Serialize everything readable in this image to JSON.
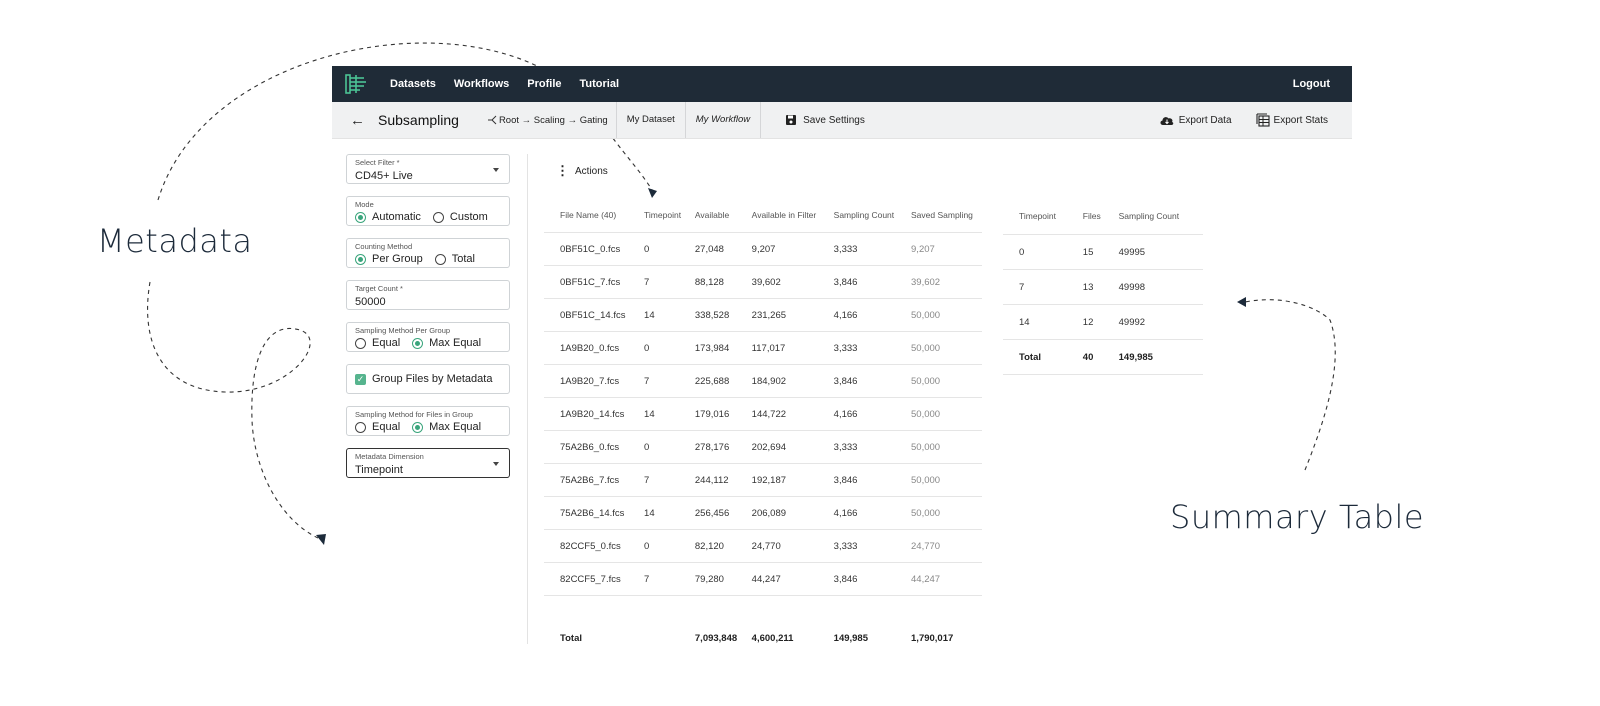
{
  "annotations": {
    "metadata": "Metadata",
    "summary_table": "Summary Table"
  },
  "nav": {
    "links": [
      "Datasets",
      "Workflows",
      "Profile",
      "Tutorial"
    ],
    "logout": "Logout"
  },
  "subbar": {
    "title": "Subsampling",
    "path": "Root → Scaling → Gating",
    "dataset": "My Dataset",
    "workflow": "My Workflow",
    "save": "Save Settings",
    "export_data": "Export Data",
    "export_stats": "Export Stats"
  },
  "form": {
    "filter": {
      "label": "Select Filter *",
      "value": "CD45+ Live"
    },
    "mode": {
      "label": "Mode",
      "options": [
        "Automatic",
        "Custom"
      ],
      "selected": "Automatic"
    },
    "counting": {
      "label": "Counting Method",
      "options": [
        "Per Group",
        "Total"
      ],
      "selected": "Per Group"
    },
    "target": {
      "label": "Target Count *",
      "value": "50000"
    },
    "sampling_group": {
      "label": "Sampling Method Per Group",
      "options": [
        "Equal",
        "Max Equal"
      ],
      "selected": "Max Equal"
    },
    "group_files": {
      "label": "Group Files by Metadata",
      "checked": true
    },
    "sampling_files": {
      "label": "Sampling Method for Files in Group",
      "options": [
        "Equal",
        "Max Equal"
      ],
      "selected": "Max Equal"
    },
    "dimension": {
      "label": "Metadata Dimension",
      "value": "Timepoint"
    }
  },
  "actions_label": "Actions",
  "main_table": {
    "headers": [
      "File Name (40)",
      "Timepoint",
      "Available",
      "Available in Filter",
      "Sampling Count",
      "Saved Sampling"
    ],
    "rows": [
      [
        "0BF51C_0.fcs",
        "0",
        "27,048",
        "9,207",
        "3,333",
        "9,207"
      ],
      [
        "0BF51C_7.fcs",
        "7",
        "88,128",
        "39,602",
        "3,846",
        "39,602"
      ],
      [
        "0BF51C_14.fcs",
        "14",
        "338,528",
        "231,265",
        "4,166",
        "50,000"
      ],
      [
        "1A9B20_0.fcs",
        "0",
        "173,984",
        "117,017",
        "3,333",
        "50,000"
      ],
      [
        "1A9B20_7.fcs",
        "7",
        "225,688",
        "184,902",
        "3,846",
        "50,000"
      ],
      [
        "1A9B20_14.fcs",
        "14",
        "179,016",
        "144,722",
        "4,166",
        "50,000"
      ],
      [
        "75A2B6_0.fcs",
        "0",
        "278,176",
        "202,694",
        "3,333",
        "50,000"
      ],
      [
        "75A2B6_7.fcs",
        "7",
        "244,112",
        "192,187",
        "3,846",
        "50,000"
      ],
      [
        "75A2B6_14.fcs",
        "14",
        "256,456",
        "206,089",
        "4,166",
        "50,000"
      ],
      [
        "82CCF5_0.fcs",
        "0",
        "82,120",
        "24,770",
        "3,333",
        "24,770"
      ],
      [
        "82CCF5_7.fcs",
        "7",
        "79,280",
        "44,247",
        "3,846",
        "44,247"
      ]
    ],
    "total": [
      "Total",
      "",
      "7,093,848",
      "4,600,211",
      "149,985",
      "1,790,017"
    ]
  },
  "summary_table": {
    "headers": [
      "Timepoint",
      "Files",
      "Sampling Count"
    ],
    "rows": [
      [
        "0",
        "15",
        "49995"
      ],
      [
        "7",
        "13",
        "49998"
      ],
      [
        "14",
        "12",
        "49992"
      ]
    ],
    "total": [
      "Total",
      "40",
      "149,985"
    ]
  },
  "colors": {
    "nav_bg": "#1f2b37",
    "accent": "#3aa57c",
    "subbar_bg": "#f0f1f2"
  }
}
